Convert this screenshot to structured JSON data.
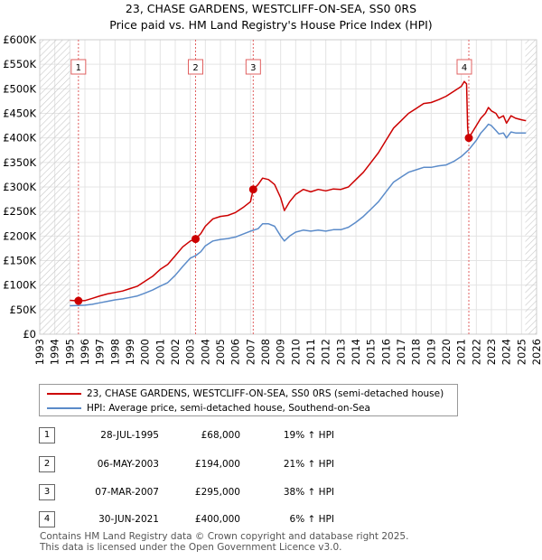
{
  "chart_data": {
    "type": "line",
    "title": "23, CHASE GARDENS, WESTCLIFF-ON-SEA, SS0 0RS",
    "subtitle": "Price paid vs. HM Land Registry's House Price Index (HPI)",
    "xlim": [
      1993,
      2026
    ],
    "ylim": [
      0,
      600000
    ],
    "x_ticks": [
      "1993",
      "1994",
      "1995",
      "1996",
      "1997",
      "1998",
      "1999",
      "2000",
      "2001",
      "2002",
      "2003",
      "2004",
      "2005",
      "2006",
      "2007",
      "2008",
      "2009",
      "2010",
      "2011",
      "2012",
      "2013",
      "2014",
      "2015",
      "2016",
      "2017",
      "2018",
      "2019",
      "2020",
      "2021",
      "2022",
      "2023",
      "2024",
      "2025",
      "2026"
    ],
    "y_ticks": [
      {
        "value": 0,
        "label": "£0"
      },
      {
        "value": 50000,
        "label": "£50K"
      },
      {
        "value": 100000,
        "label": "£100K"
      },
      {
        "value": 150000,
        "label": "£150K"
      },
      {
        "value": 200000,
        "label": "£200K"
      },
      {
        "value": 250000,
        "label": "£250K"
      },
      {
        "value": 300000,
        "label": "£300K"
      },
      {
        "value": 350000,
        "label": "£350K"
      },
      {
        "value": 400000,
        "label": "£400K"
      },
      {
        "value": 450000,
        "label": "£450K"
      },
      {
        "value": 500000,
        "label": "£500K"
      },
      {
        "value": 550000,
        "label": "£550K"
      },
      {
        "value": 600000,
        "label": "£600K"
      }
    ],
    "hatched_ranges": [
      [
        1993,
        1995.0
      ],
      [
        2025.25,
        2026
      ]
    ],
    "series": [
      {
        "name": "23, CHASE GARDENS, WESTCLIFF-ON-SEA, SS0 0RS (semi-detached house)",
        "color": "#cc0000",
        "points": [
          [
            1995.0,
            69000
          ],
          [
            1995.57,
            68000
          ],
          [
            1996.0,
            68500
          ],
          [
            1996.5,
            73000
          ],
          [
            1997.0,
            78000
          ],
          [
            1997.5,
            82000
          ],
          [
            1998.0,
            85000
          ],
          [
            1998.5,
            88000
          ],
          [
            1999.0,
            93000
          ],
          [
            1999.5,
            98000
          ],
          [
            2000.0,
            108000
          ],
          [
            2000.5,
            118000
          ],
          [
            2001.0,
            132000
          ],
          [
            2001.5,
            142000
          ],
          [
            2002.0,
            160000
          ],
          [
            2002.5,
            178000
          ],
          [
            2003.0,
            190000
          ],
          [
            2003.35,
            194000
          ],
          [
            2003.7,
            205000
          ],
          [
            2004.0,
            220000
          ],
          [
            2004.5,
            235000
          ],
          [
            2005.0,
            240000
          ],
          [
            2005.5,
            242000
          ],
          [
            2006.0,
            248000
          ],
          [
            2006.5,
            258000
          ],
          [
            2007.0,
            270000
          ],
          [
            2007.18,
            295000
          ],
          [
            2007.5,
            305000
          ],
          [
            2007.8,
            318000
          ],
          [
            2008.2,
            315000
          ],
          [
            2008.6,
            305000
          ],
          [
            2009.0,
            278000
          ],
          [
            2009.25,
            252000
          ],
          [
            2009.6,
            270000
          ],
          [
            2010.0,
            285000
          ],
          [
            2010.5,
            295000
          ],
          [
            2011.0,
            290000
          ],
          [
            2011.5,
            295000
          ],
          [
            2012.0,
            292000
          ],
          [
            2012.5,
            296000
          ],
          [
            2013.0,
            295000
          ],
          [
            2013.5,
            300000
          ],
          [
            2014.0,
            315000
          ],
          [
            2014.5,
            330000
          ],
          [
            2015.0,
            350000
          ],
          [
            2015.5,
            370000
          ],
          [
            2016.0,
            395000
          ],
          [
            2016.5,
            420000
          ],
          [
            2017.0,
            435000
          ],
          [
            2017.5,
            450000
          ],
          [
            2018.0,
            460000
          ],
          [
            2018.5,
            470000
          ],
          [
            2019.0,
            472000
          ],
          [
            2019.5,
            478000
          ],
          [
            2020.0,
            485000
          ],
          [
            2020.5,
            495000
          ],
          [
            2021.0,
            505000
          ],
          [
            2021.2,
            515000
          ],
          [
            2021.35,
            510000
          ],
          [
            2021.42,
            420000
          ],
          [
            2021.5,
            400000
          ],
          [
            2021.8,
            415000
          ],
          [
            2022.0,
            425000
          ],
          [
            2022.3,
            440000
          ],
          [
            2022.6,
            450000
          ],
          [
            2022.8,
            462000
          ],
          [
            2023.0,
            455000
          ],
          [
            2023.3,
            450000
          ],
          [
            2023.5,
            440000
          ],
          [
            2023.8,
            445000
          ],
          [
            2024.0,
            430000
          ],
          [
            2024.3,
            445000
          ],
          [
            2024.6,
            440000
          ],
          [
            2025.0,
            437000
          ],
          [
            2025.3,
            435000
          ]
        ]
      },
      {
        "name": "HPI: Average price, semi-detached house, Southend-on-Sea",
        "color": "#5b8bc9",
        "points": [
          [
            1995.0,
            58000
          ],
          [
            1995.5,
            58500
          ],
          [
            1996.0,
            59000
          ],
          [
            1996.5,
            61000
          ],
          [
            1997.0,
            64000
          ],
          [
            1997.5,
            67000
          ],
          [
            1998.0,
            70000
          ],
          [
            1998.5,
            72000
          ],
          [
            1999.0,
            75000
          ],
          [
            1999.5,
            78000
          ],
          [
            2000.0,
            84000
          ],
          [
            2000.5,
            90000
          ],
          [
            2001.0,
            98000
          ],
          [
            2001.5,
            105000
          ],
          [
            2002.0,
            120000
          ],
          [
            2002.5,
            138000
          ],
          [
            2003.0,
            155000
          ],
          [
            2003.35,
            160000
          ],
          [
            2003.7,
            168000
          ],
          [
            2004.0,
            180000
          ],
          [
            2004.5,
            190000
          ],
          [
            2005.0,
            193000
          ],
          [
            2005.5,
            195000
          ],
          [
            2006.0,
            198000
          ],
          [
            2006.5,
            204000
          ],
          [
            2007.0,
            210000
          ],
          [
            2007.5,
            215000
          ],
          [
            2007.8,
            225000
          ],
          [
            2008.2,
            225000
          ],
          [
            2008.6,
            220000
          ],
          [
            2009.0,
            200000
          ],
          [
            2009.25,
            190000
          ],
          [
            2009.6,
            200000
          ],
          [
            2010.0,
            208000
          ],
          [
            2010.5,
            212000
          ],
          [
            2011.0,
            210000
          ],
          [
            2011.5,
            212000
          ],
          [
            2012.0,
            210000
          ],
          [
            2012.5,
            213000
          ],
          [
            2013.0,
            213000
          ],
          [
            2013.5,
            218000
          ],
          [
            2014.0,
            228000
          ],
          [
            2014.5,
            240000
          ],
          [
            2015.0,
            255000
          ],
          [
            2015.5,
            270000
          ],
          [
            2016.0,
            290000
          ],
          [
            2016.5,
            310000
          ],
          [
            2017.0,
            320000
          ],
          [
            2017.5,
            330000
          ],
          [
            2018.0,
            335000
          ],
          [
            2018.5,
            340000
          ],
          [
            2019.0,
            340000
          ],
          [
            2019.5,
            343000
          ],
          [
            2020.0,
            345000
          ],
          [
            2020.5,
            352000
          ],
          [
            2021.0,
            362000
          ],
          [
            2021.5,
            376000
          ],
          [
            2022.0,
            395000
          ],
          [
            2022.3,
            410000
          ],
          [
            2022.6,
            420000
          ],
          [
            2022.8,
            428000
          ],
          [
            2023.0,
            425000
          ],
          [
            2023.3,
            415000
          ],
          [
            2023.5,
            408000
          ],
          [
            2023.8,
            410000
          ],
          [
            2024.0,
            400000
          ],
          [
            2024.3,
            412000
          ],
          [
            2024.6,
            410000
          ],
          [
            2025.0,
            410000
          ],
          [
            2025.3,
            410000
          ]
        ]
      }
    ],
    "sales": [
      {
        "num": "1",
        "x": 1995.57,
        "price": 68000
      },
      {
        "num": "2",
        "x": 2003.35,
        "price": 194000
      },
      {
        "num": "3",
        "x": 2007.18,
        "price": 295000
      },
      {
        "num": "4",
        "x": 2021.5,
        "price": 400000
      }
    ]
  },
  "legend": {
    "property_label": "23, CHASE GARDENS, WESTCLIFF-ON-SEA, SS0 0RS (semi-detached house)",
    "hpi_label": "HPI: Average price, semi-detached house, Southend-on-Sea"
  },
  "transactions": [
    {
      "num": "1",
      "date": "28-JUL-1995",
      "price": "£68,000",
      "hpi": "19% ↑ HPI"
    },
    {
      "num": "2",
      "date": "06-MAY-2003",
      "price": "£194,000",
      "hpi": "21% ↑ HPI"
    },
    {
      "num": "3",
      "date": "07-MAR-2007",
      "price": "£295,000",
      "hpi": "38% ↑ HPI"
    },
    {
      "num": "4",
      "date": "30-JUN-2021",
      "price": "£400,000",
      "hpi": "6% ↑ HPI"
    }
  ],
  "footer": {
    "line1": "Contains HM Land Registry data © Crown copyright and database right 2025.",
    "line2": "This data is licensed under the Open Government Licence v3.0."
  }
}
